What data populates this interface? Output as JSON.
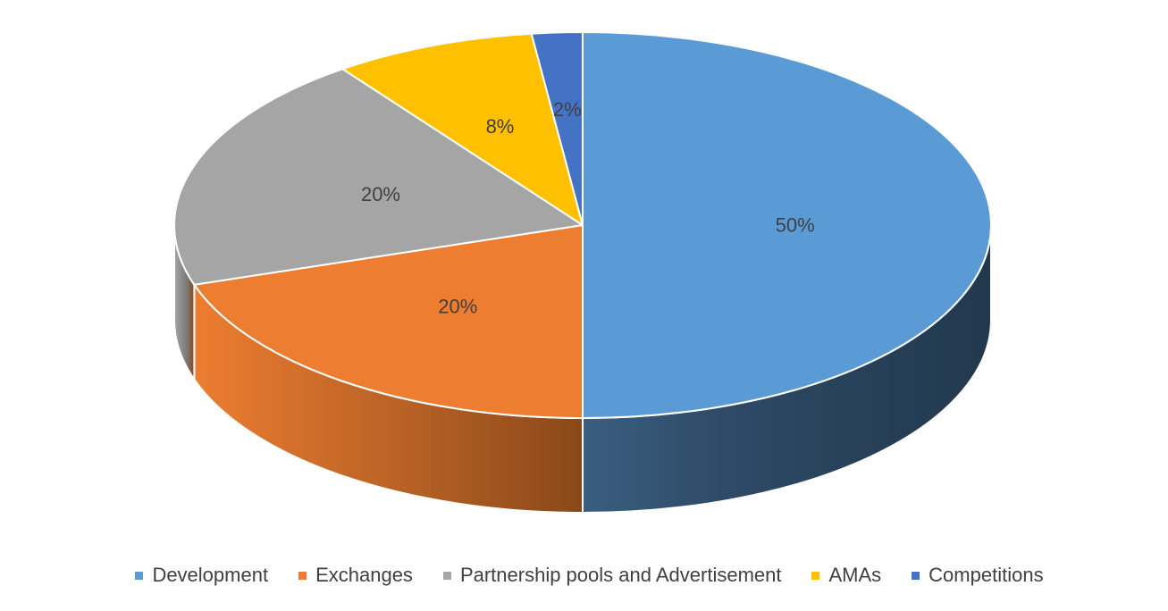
{
  "chart_data": {
    "type": "pie",
    "style": "3d",
    "title": "",
    "categories": [
      "Development",
      "Exchanges",
      "Partnership pools and Advertisement",
      "AMAs",
      "Competitions"
    ],
    "values": [
      50,
      20,
      20,
      8,
      2
    ],
    "data_labels": [
      "50%",
      "20%",
      "20%",
      "8%",
      "2%"
    ],
    "colors": [
      "#5B9BD5",
      "#ED7D31",
      "#A5A5A5",
      "#FFC000",
      "#4472C4"
    ],
    "side_colors": [
      "#2E4A66",
      "#B25E24",
      "#7C7C7C",
      "#BF9000",
      "#33568F"
    ],
    "legend_position": "bottom",
    "start_angle_deg": 0,
    "direction": "clockwise"
  }
}
